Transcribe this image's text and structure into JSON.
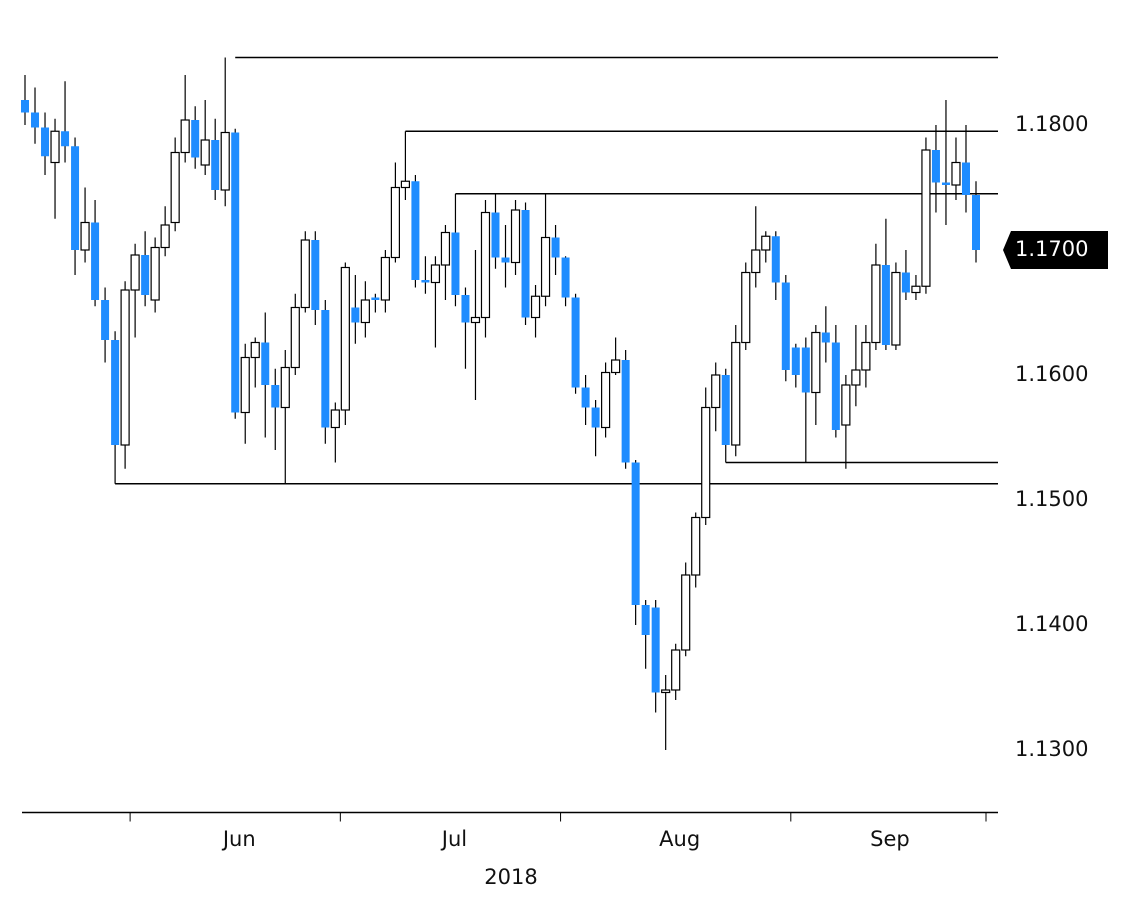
{
  "chart_data": {
    "type": "candlestick",
    "xlabel": "2018",
    "up_color": "#ffffff",
    "down_color": "#1e8cff",
    "outline_color": "#000000",
    "categories": [
      null,
      null,
      null,
      null,
      null,
      null,
      null,
      null,
      null,
      null,
      null,
      "Jun",
      "Jun",
      "Jun",
      "Jun",
      "Jun",
      "Jun",
      "Jun",
      "Jun",
      "Jun",
      "Jun",
      "Jun",
      "Jun",
      "Jun",
      "Jun",
      "Jun",
      "Jun",
      "Jun",
      "Jun",
      "Jun",
      "Jun",
      "Jun",
      "Jul",
      "Jul",
      "Jul",
      "Jul",
      "Jul",
      "Jul",
      "Jul",
      "Jul",
      "Jul",
      "Jul",
      "Jul",
      "Jul",
      "Jul",
      "Jul",
      "Jul",
      "Jul",
      "Jul",
      "Jul",
      "Jul",
      "Jul",
      "Jul",
      "Jul",
      "Aug",
      "Aug",
      "Aug",
      "Aug",
      "Aug",
      "Aug",
      "Aug",
      "Aug",
      "Aug",
      "Aug",
      "Aug",
      "Aug",
      "Aug",
      "Aug",
      "Aug",
      "Aug",
      "Aug",
      "Aug",
      "Aug",
      "Aug",
      "Aug",
      "Aug",
      "Aug",
      "Sep",
      "Sep",
      "Sep",
      "Sep",
      "Sep",
      "Sep",
      "Sep",
      "Sep",
      "Sep",
      "Sep",
      "Sep",
      "Sep",
      "Sep",
      "Sep",
      "Sep",
      "Sep",
      "Sep",
      "Sep",
      "Sep"
    ],
    "open": [
      1.182,
      1.181,
      1.1798,
      1.177,
      1.1795,
      1.1783,
      1.17,
      1.1722,
      1.166,
      1.1628,
      1.1544,
      1.1668,
      1.1696,
      1.166,
      1.1702,
      1.1722,
      1.1778,
      1.1804,
      1.1768,
      1.1788,
      1.1748,
      1.1794,
      1.157,
      1.1614,
      1.1626,
      1.1592,
      1.1574,
      1.1606,
      1.1654,
      1.1708,
      1.1652,
      1.1558,
      1.1572,
      1.1654,
      1.1642,
      1.1662,
      1.166,
      1.1694,
      1.175,
      1.1755,
      1.1676,
      1.1674,
      1.1688,
      1.1714,
      1.1664,
      1.1642,
      1.1646,
      1.173,
      1.1694,
      1.169,
      1.1732,
      1.1646,
      1.1663,
      1.171,
      1.1694,
      1.1662,
      1.159,
      1.1574,
      1.1558,
      1.1602,
      1.1612,
      1.153,
      1.1416,
      1.1414,
      1.1346,
      1.1348,
      1.138,
      1.144,
      1.1486,
      1.1574,
      1.16,
      1.1544,
      1.1626,
      1.1682,
      1.17,
      1.1711,
      1.1674,
      1.1622,
      1.1622,
      1.1586,
      1.1634,
      1.1626,
      1.156,
      1.1592,
      1.1604,
      1.1626,
      1.1688,
      1.1624,
      1.1682,
      1.1666,
      1.1671,
      1.178,
      1.1754,
      1.1752,
      1.177,
      1.1744
    ],
    "close": [
      1.181,
      1.1798,
      1.1775,
      1.1795,
      1.1783,
      1.17,
      1.1722,
      1.166,
      1.1628,
      1.1544,
      1.1668,
      1.1696,
      1.1664,
      1.1702,
      1.172,
      1.1778,
      1.1804,
      1.1774,
      1.1788,
      1.1748,
      1.1794,
      1.157,
      1.1614,
      1.1626,
      1.1592,
      1.1574,
      1.1606,
      1.1654,
      1.1708,
      1.1652,
      1.1558,
      1.1572,
      1.1686,
      1.1642,
      1.166,
      1.166,
      1.1694,
      1.175,
      1.1755,
      1.1676,
      1.1674,
      1.1688,
      1.1714,
      1.1664,
      1.1642,
      1.1646,
      1.173,
      1.1694,
      1.169,
      1.1732,
      1.1646,
      1.1663,
      1.171,
      1.1694,
      1.1662,
      1.159,
      1.1574,
      1.1558,
      1.1602,
      1.1612,
      1.153,
      1.1416,
      1.1392,
      1.1346,
      1.1348,
      1.138,
      1.144,
      1.1486,
      1.1574,
      1.16,
      1.1544,
      1.1626,
      1.1682,
      1.17,
      1.1711,
      1.1674,
      1.1604,
      1.16,
      1.1586,
      1.1634,
      1.1626,
      1.1556,
      1.1592,
      1.1604,
      1.1626,
      1.1688,
      1.1624,
      1.1682,
      1.1666,
      1.1671,
      1.178,
      1.1754,
      1.1752,
      1.177,
      1.1744,
      1.17
    ],
    "high": [
      1.184,
      1.183,
      1.181,
      1.1805,
      1.1835,
      1.179,
      1.175,
      1.174,
      1.167,
      1.1635,
      1.1675,
      1.1705,
      1.1715,
      1.171,
      1.1735,
      1.179,
      1.184,
      1.1815,
      1.182,
      1.1805,
      1.1854,
      1.1797,
      1.1625,
      1.163,
      1.165,
      1.1605,
      1.162,
      1.1665,
      1.1715,
      1.1715,
      1.166,
      1.1578,
      1.169,
      1.168,
      1.1675,
      1.1665,
      1.17,
      1.177,
      1.1795,
      1.176,
      1.1695,
      1.1695,
      1.172,
      1.1745,
      1.167,
      1.17,
      1.174,
      1.1745,
      1.172,
      1.174,
      1.1738,
      1.1672,
      1.1745,
      1.172,
      1.1695,
      1.1665,
      1.16,
      1.158,
      1.161,
      1.163,
      1.162,
      1.1532,
      1.142,
      1.142,
      1.136,
      1.1385,
      1.145,
      1.149,
      1.159,
      1.161,
      1.1605,
      1.164,
      1.169,
      1.1735,
      1.1715,
      1.1715,
      1.168,
      1.1625,
      1.163,
      1.164,
      1.1655,
      1.164,
      1.16,
      1.164,
      1.164,
      1.1705,
      1.1725,
      1.169,
      1.17,
      1.168,
      1.179,
      1.18,
      1.182,
      1.179,
      1.18,
      1.1755
    ],
    "low": [
      1.18,
      1.1785,
      1.176,
      1.1725,
      1.177,
      1.168,
      1.169,
      1.1655,
      1.161,
      1.1513,
      1.1525,
      1.163,
      1.1655,
      1.165,
      1.1695,
      1.1715,
      1.177,
      1.1765,
      1.176,
      1.174,
      1.1735,
      1.1565,
      1.1545,
      1.159,
      1.155,
      1.154,
      1.1513,
      1.16,
      1.165,
      1.164,
      1.1545,
      1.153,
      1.156,
      1.1625,
      1.163,
      1.165,
      1.165,
      1.169,
      1.174,
      1.167,
      1.1665,
      1.1622,
      1.166,
      1.1655,
      1.1605,
      1.158,
      1.163,
      1.1685,
      1.167,
      1.168,
      1.164,
      1.163,
      1.1655,
      1.168,
      1.1655,
      1.1585,
      1.156,
      1.1535,
      1.155,
      1.16,
      1.1525,
      1.14,
      1.1365,
      1.133,
      1.13,
      1.134,
      1.1375,
      1.143,
      1.148,
      1.1555,
      1.153,
      1.1535,
      1.162,
      1.167,
      1.169,
      1.166,
      1.1595,
      1.159,
      1.153,
      1.156,
      1.161,
      1.155,
      1.1525,
      1.1575,
      1.159,
      1.162,
      1.162,
      1.162,
      1.166,
      1.166,
      1.1665,
      1.173,
      1.172,
      1.174,
      1.173,
      1.169
    ],
    "levels": [
      {
        "value": 1.1854,
        "from": 21
      },
      {
        "value": 1.1795,
        "from": 38
      },
      {
        "value": 1.1745,
        "from": 43
      },
      {
        "value": 1.153,
        "from": 70
      },
      {
        "value": 1.1513,
        "from": 9
      }
    ],
    "last_price": {
      "value": 1.17,
      "label": "1.1700"
    },
    "ylim": [
      1.125,
      1.1875
    ],
    "yticks": [
      {
        "value": 1.13,
        "label": "1.1300"
      },
      {
        "value": 1.14,
        "label": "1.1400"
      },
      {
        "value": 1.15,
        "label": "1.1500"
      },
      {
        "value": 1.16,
        "label": "1.1600"
      },
      {
        "value": 1.17,
        "label": "1.1700"
      },
      {
        "value": 1.18,
        "label": "1.1800"
      }
    ]
  }
}
